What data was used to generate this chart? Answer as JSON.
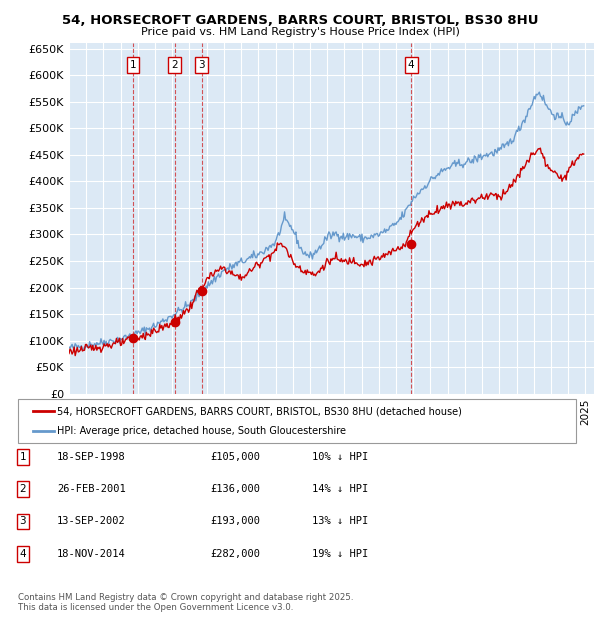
{
  "title": "54, HORSECROFT GARDENS, BARRS COURT, BRISTOL, BS30 8HU",
  "subtitle": "Price paid vs. HM Land Registry's House Price Index (HPI)",
  "bg_color": "#dce9f5",
  "red_line_color": "#cc0000",
  "blue_line_color": "#6699cc",
  "grid_color": "#ffffff",
  "transactions": [
    {
      "num": 1,
      "date_str": "18-SEP-1998",
      "price": 105000,
      "pct": "10%",
      "x": 1998.72
    },
    {
      "num": 2,
      "date_str": "26-FEB-2001",
      "price": 136000,
      "pct": "14%",
      "x": 2001.15
    },
    {
      "num": 3,
      "date_str": "13-SEP-2002",
      "price": 193000,
      "pct": "13%",
      "x": 2002.7
    },
    {
      "num": 4,
      "date_str": "18-NOV-2014",
      "price": 282000,
      "pct": "19%",
      "x": 2014.88
    }
  ],
  "hpi_label": "HPI: Average price, detached house, South Gloucestershire",
  "price_label": "54, HORSECROFT GARDENS, BARRS COURT, BRISTOL, BS30 8HU (detached house)",
  "footer": "Contains HM Land Registry data © Crown copyright and database right 2025.\nThis data is licensed under the Open Government Licence v3.0.",
  "ylim": [
    0,
    660000
  ],
  "yticks": [
    0,
    50000,
    100000,
    150000,
    200000,
    250000,
    300000,
    350000,
    400000,
    450000,
    500000,
    550000,
    600000,
    650000
  ],
  "xlim_start": 1995.0,
  "xlim_end": 2025.5,
  "hpi_waypoints": [
    [
      1995.0,
      86000
    ],
    [
      1996.0,
      91000
    ],
    [
      1997.0,
      97000
    ],
    [
      1998.0,
      103000
    ],
    [
      1999.0,
      114000
    ],
    [
      2000.0,
      128000
    ],
    [
      2001.0,
      148000
    ],
    [
      2002.0,
      168000
    ],
    [
      2003.0,
      202000
    ],
    [
      2004.0,
      232000
    ],
    [
      2005.0,
      248000
    ],
    [
      2006.0,
      262000
    ],
    [
      2007.0,
      285000
    ],
    [
      2007.5,
      328000
    ],
    [
      2008.0,
      310000
    ],
    [
      2008.5,
      270000
    ],
    [
      2009.0,
      258000
    ],
    [
      2009.5,
      272000
    ],
    [
      2010.0,
      295000
    ],
    [
      2010.5,
      302000
    ],
    [
      2011.0,
      295000
    ],
    [
      2011.5,
      298000
    ],
    [
      2012.0,
      292000
    ],
    [
      2012.5,
      295000
    ],
    [
      2013.0,
      300000
    ],
    [
      2013.5,
      308000
    ],
    [
      2014.0,
      320000
    ],
    [
      2014.5,
      340000
    ],
    [
      2015.0,
      368000
    ],
    [
      2015.5,
      385000
    ],
    [
      2016.0,
      402000
    ],
    [
      2016.5,
      415000
    ],
    [
      2017.0,
      425000
    ],
    [
      2017.5,
      432000
    ],
    [
      2018.0,
      435000
    ],
    [
      2018.5,
      440000
    ],
    [
      2019.0,
      448000
    ],
    [
      2019.5,
      452000
    ],
    [
      2020.0,
      458000
    ],
    [
      2020.5,
      470000
    ],
    [
      2021.0,
      490000
    ],
    [
      2021.5,
      520000
    ],
    [
      2022.0,
      555000
    ],
    [
      2022.3,
      570000
    ],
    [
      2022.8,
      540000
    ],
    [
      2023.0,
      530000
    ],
    [
      2023.5,
      520000
    ],
    [
      2024.0,
      510000
    ],
    [
      2024.5,
      530000
    ],
    [
      2024.9,
      548000
    ]
  ],
  "price_waypoints": [
    [
      1995.0,
      80000
    ],
    [
      1996.0,
      84000
    ],
    [
      1997.0,
      90000
    ],
    [
      1998.0,
      96000
    ],
    [
      1999.0,
      105000
    ],
    [
      2000.0,
      118000
    ],
    [
      2001.0,
      133000
    ],
    [
      2001.5,
      148000
    ],
    [
      2002.0,
      160000
    ],
    [
      2002.5,
      193000
    ],
    [
      2003.0,
      215000
    ],
    [
      2003.5,
      228000
    ],
    [
      2004.0,
      238000
    ],
    [
      2004.5,
      225000
    ],
    [
      2005.0,
      218000
    ],
    [
      2005.5,
      230000
    ],
    [
      2006.0,
      245000
    ],
    [
      2006.5,
      258000
    ],
    [
      2007.0,
      270000
    ],
    [
      2007.3,
      285000
    ],
    [
      2007.7,
      268000
    ],
    [
      2008.0,
      248000
    ],
    [
      2008.5,
      235000
    ],
    [
      2009.0,
      228000
    ],
    [
      2009.3,
      222000
    ],
    [
      2009.7,
      238000
    ],
    [
      2010.0,
      248000
    ],
    [
      2010.5,
      255000
    ],
    [
      2011.0,
      248000
    ],
    [
      2011.5,
      252000
    ],
    [
      2012.0,
      245000
    ],
    [
      2012.5,
      248000
    ],
    [
      2013.0,
      255000
    ],
    [
      2013.5,
      262000
    ],
    [
      2014.0,
      272000
    ],
    [
      2014.5,
      282000
    ],
    [
      2015.0,
      310000
    ],
    [
      2015.5,
      328000
    ],
    [
      2016.0,
      340000
    ],
    [
      2016.5,
      348000
    ],
    [
      2017.0,
      355000
    ],
    [
      2017.5,
      360000
    ],
    [
      2018.0,
      358000
    ],
    [
      2018.5,
      365000
    ],
    [
      2019.0,
      370000
    ],
    [
      2019.5,
      375000
    ],
    [
      2020.0,
      372000
    ],
    [
      2020.5,
      385000
    ],
    [
      2021.0,
      405000
    ],
    [
      2021.5,
      430000
    ],
    [
      2022.0,
      455000
    ],
    [
      2022.3,
      462000
    ],
    [
      2022.8,
      428000
    ],
    [
      2023.0,
      418000
    ],
    [
      2023.5,
      408000
    ],
    [
      2024.0,
      415000
    ],
    [
      2024.5,
      445000
    ],
    [
      2024.9,
      452000
    ]
  ]
}
